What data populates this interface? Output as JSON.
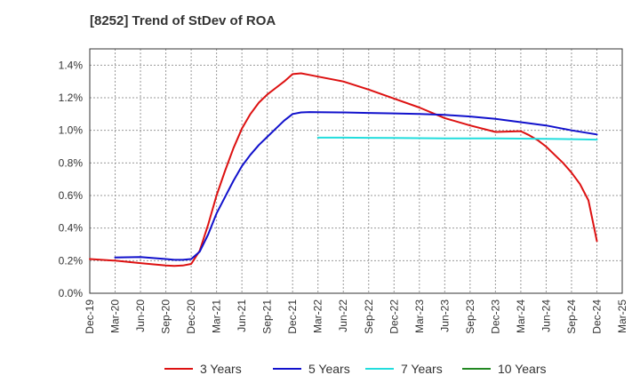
{
  "chart_data": {
    "type": "line",
    "title": "[8252]  Trend of StDev of ROA",
    "xlabel": "",
    "ylabel": "",
    "x_ticks": [
      "Dec-19",
      "Mar-20",
      "Jun-20",
      "Sep-20",
      "Dec-20",
      "Mar-21",
      "Jun-21",
      "Sep-21",
      "Dec-21",
      "Mar-22",
      "Jun-22",
      "Sep-22",
      "Dec-22",
      "Mar-23",
      "Jun-23",
      "Sep-23",
      "Dec-23",
      "Mar-24",
      "Jun-24",
      "Sep-24",
      "Dec-24",
      "Mar-25"
    ],
    "y_ticks": [
      "0.0%",
      "0.2%",
      "0.4%",
      "0.6%",
      "0.8%",
      "1.0%",
      "1.2%",
      "1.4%"
    ],
    "ylim": [
      0,
      1.5
    ],
    "grid": true,
    "legend_position": "bottom",
    "series": [
      {
        "name": "3 Years",
        "color": "#dd1111",
        "x": [
          "Dec-19",
          "Mar-20",
          "Jun-20",
          "Sep-20",
          "Oct-20",
          "Nov-20",
          "Dec-20",
          "Jan-21",
          "Feb-21",
          "Mar-21",
          "Apr-21",
          "May-21",
          "Jun-21",
          "Jul-21",
          "Aug-21",
          "Sep-21",
          "Oct-21",
          "Nov-21",
          "Dec-21",
          "Jan-22",
          "Feb-22",
          "Mar-22",
          "Jun-22",
          "Sep-22",
          "Dec-22",
          "Mar-23",
          "Jun-23",
          "Sep-23",
          "Dec-23",
          "Mar-24",
          "Apr-24",
          "May-24",
          "Jun-24",
          "Jul-24",
          "Aug-24",
          "Sep-24",
          "Oct-24",
          "Nov-24",
          "Dec-24"
        ],
        "values": [
          0.21,
          0.2,
          0.185,
          0.17,
          0.168,
          0.17,
          0.18,
          0.26,
          0.42,
          0.6,
          0.75,
          0.89,
          1.01,
          1.1,
          1.17,
          1.22,
          1.26,
          1.3,
          1.345,
          1.35,
          1.34,
          1.33,
          1.3,
          1.25,
          1.195,
          1.14,
          1.075,
          1.03,
          0.99,
          0.995,
          0.97,
          0.94,
          0.9,
          0.85,
          0.8,
          0.74,
          0.67,
          0.57,
          0.32
        ]
      },
      {
        "name": "5 Years",
        "color": "#1111cc",
        "x": [
          "Mar-20",
          "Jun-20",
          "Sep-20",
          "Oct-20",
          "Nov-20",
          "Dec-20",
          "Jan-21",
          "Feb-21",
          "Mar-21",
          "Apr-21",
          "May-21",
          "Jun-21",
          "Jul-21",
          "Aug-21",
          "Sep-21",
          "Oct-21",
          "Nov-21",
          "Dec-21",
          "Jan-22",
          "Feb-22",
          "Mar-22",
          "Jun-22",
          "Sep-22",
          "Dec-22",
          "Mar-23",
          "Jun-23",
          "Sep-23",
          "Dec-23",
          "Mar-24",
          "Jun-24",
          "Sep-24",
          "Dec-24"
        ],
        "values": [
          0.22,
          0.222,
          0.21,
          0.205,
          0.205,
          0.21,
          0.255,
          0.36,
          0.49,
          0.59,
          0.69,
          0.78,
          0.85,
          0.91,
          0.96,
          1.01,
          1.06,
          1.1,
          1.11,
          1.112,
          1.111,
          1.11,
          1.107,
          1.104,
          1.1,
          1.095,
          1.085,
          1.07,
          1.05,
          1.03,
          1.0,
          0.975
        ]
      },
      {
        "name": "7 Years",
        "color": "#22dddd",
        "x": [
          "Mar-22",
          "Jun-22",
          "Sep-22",
          "Dec-22",
          "Mar-23",
          "Jun-23",
          "Sep-23",
          "Dec-23",
          "Mar-24",
          "Jun-24",
          "Sep-24",
          "Dec-24"
        ],
        "values": [
          0.955,
          0.955,
          0.954,
          0.953,
          0.952,
          0.951,
          0.95,
          0.95,
          0.949,
          0.948,
          0.946,
          0.943
        ]
      },
      {
        "name": "10 Years",
        "color": "#228822",
        "x": [],
        "values": []
      }
    ]
  }
}
